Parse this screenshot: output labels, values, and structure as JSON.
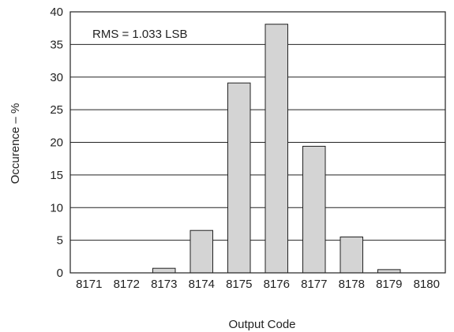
{
  "chart_data": {
    "type": "bar",
    "categories": [
      "8171",
      "8172",
      "8173",
      "8174",
      "8175",
      "8176",
      "8177",
      "8178",
      "8179",
      "8180"
    ],
    "values": [
      0,
      0,
      0.7,
      6.5,
      29.1,
      38.1,
      19.4,
      5.5,
      0.5,
      0
    ],
    "xlabel": "Output Code",
    "ylabel": "Occurence – %",
    "ylim": [
      0,
      40
    ],
    "yticks": [
      "0",
      "5",
      "10",
      "15",
      "20",
      "25",
      "30",
      "35",
      "40"
    ],
    "annotation": "RMS = 1.033 LSB",
    "grid": "horizontal",
    "colors": {
      "bar_fill": "#d4d4d4",
      "bar_stroke": "#222222",
      "grid": "#222222",
      "frame": "#222222"
    }
  }
}
